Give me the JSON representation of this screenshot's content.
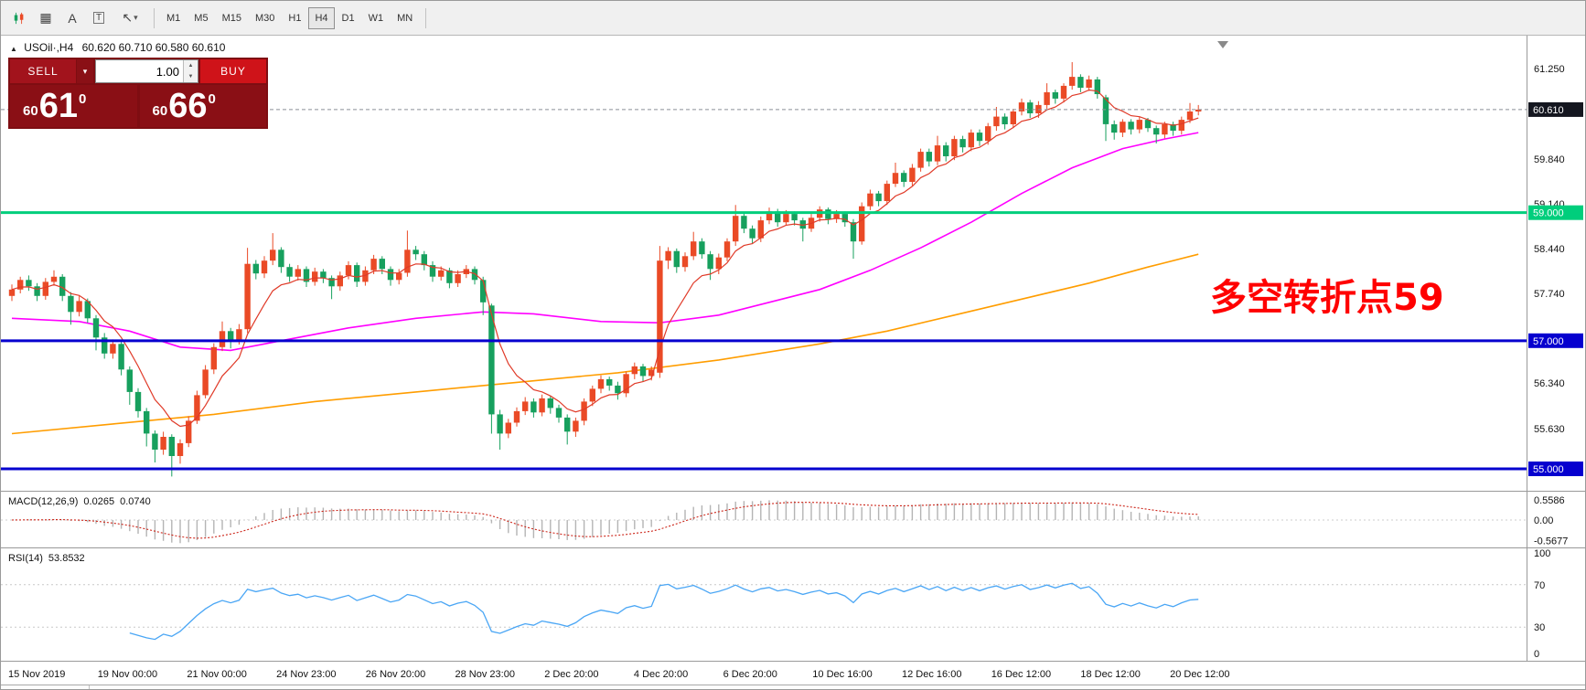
{
  "toolbar": {
    "icons": [
      {
        "name": "candlestick-chart-icon"
      },
      {
        "name": "indicator-window-icon",
        "glyph": "▦"
      },
      {
        "name": "text-label-icon",
        "glyph": "A"
      },
      {
        "name": "text-box-icon",
        "glyph": "T"
      },
      {
        "name": "drawing-tools-icon",
        "glyph": "↖"
      },
      {
        "name": "drawing-tools-caret-icon",
        "glyph": "▾"
      }
    ],
    "timeframes": [
      "M1",
      "M5",
      "M15",
      "M30",
      "H1",
      "H4",
      "D1",
      "W1",
      "MN"
    ],
    "active": "H4"
  },
  "title_bar": {
    "collapse_glyph": "▲",
    "symbol": "USOil·,H4",
    "ohlc": "60.620 60.710 60.580 60.610"
  },
  "trade_panel": {
    "sell_label": "SELL",
    "buy_label": "BUY",
    "volume": "1.00",
    "dropdown_glyph": "▾",
    "spin_up_glyph": "▲",
    "spin_down_glyph": "▼",
    "sell_price": {
      "prefix": "60",
      "big": "61",
      "sup": "0"
    },
    "buy_price": {
      "prefix": "60",
      "big": "66",
      "sup": "0"
    }
  },
  "annotation": {
    "text": "多空转折点59",
    "color": "#ff0000"
  },
  "price_axis": {
    "ticks": [
      {
        "label": "61.250",
        "price": 61.25
      },
      {
        "label": "59.840",
        "price": 59.84
      },
      {
        "label": "59.140",
        "price": 59.14
      },
      {
        "label": "58.440",
        "price": 58.44
      },
      {
        "label": "57.740",
        "price": 57.74
      },
      {
        "label": "56.340",
        "price": 56.34
      },
      {
        "label": "55.630",
        "price": 55.63
      }
    ]
  },
  "time_axis": {
    "labels": [
      "15 Nov 2019",
      "19 Nov 00:00",
      "21 Nov 00:00",
      "24 Nov 23:00",
      "26 Nov 20:00",
      "28 Nov 23:00",
      "2 Dec 20:00",
      "4 Dec 20:00",
      "6 Dec 20:00",
      "10 Dec 16:00",
      "12 Dec 16:00",
      "16 Dec 12:00",
      "18 Dec 12:00",
      "20 Dec 12:00"
    ]
  },
  "indicators": {
    "macd": {
      "label": "MACD(12,26,9)",
      "value_main": "0.0265",
      "value_signal": "0.0740",
      "axis": [
        {
          "label": "0.5586",
          "value": 0.5586
        },
        {
          "label": "0.00",
          "value": 0
        },
        {
          "label": "-0.5677",
          "value": -0.5677
        }
      ]
    },
    "rsi": {
      "label": "RSI(14)",
      "value": "53.8532",
      "levels": [
        70,
        30
      ],
      "axis": [
        {
          "label": "100",
          "value": 100
        },
        {
          "label": "70",
          "value": 70
        },
        {
          "label": "30",
          "value": 30
        },
        {
          "label": "0",
          "value": 0
        }
      ]
    }
  },
  "chart_data": {
    "type": "candlestick",
    "symbol": "USOil",
    "timeframe": "H4",
    "last_ohlc": {
      "open": 60.62,
      "high": 60.71,
      "low": 60.58,
      "close": 60.61
    },
    "price_range": [
      54.7,
      61.76
    ],
    "up_color": "#ea4a26",
    "down_color": "#17a05e",
    "ohlc": [
      [
        57.7,
        57.88,
        57.62,
        57.8
      ],
      [
        57.8,
        58.0,
        57.74,
        57.95
      ],
      [
        57.95,
        58.02,
        57.78,
        57.85
      ],
      [
        57.85,
        57.9,
        57.62,
        57.7
      ],
      [
        57.7,
        57.98,
        57.64,
        57.92
      ],
      [
        57.92,
        58.1,
        57.86,
        58.0
      ],
      [
        58.0,
        58.04,
        57.62,
        57.7
      ],
      [
        57.7,
        57.76,
        57.25,
        57.45
      ],
      [
        57.45,
        57.7,
        57.38,
        57.62
      ],
      [
        57.62,
        57.66,
        57.28,
        57.35
      ],
      [
        57.35,
        57.4,
        56.85,
        57.05
      ],
      [
        57.05,
        57.12,
        56.72,
        56.8
      ],
      [
        56.8,
        57.02,
        56.72,
        56.95
      ],
      [
        56.95,
        56.98,
        56.46,
        56.55
      ],
      [
        56.55,
        56.6,
        56.0,
        56.2
      ],
      [
        56.2,
        56.26,
        55.8,
        55.9
      ],
      [
        55.9,
        55.95,
        55.35,
        55.55
      ],
      [
        55.55,
        55.6,
        55.1,
        55.3
      ],
      [
        55.3,
        55.58,
        55.22,
        55.5
      ],
      [
        55.5,
        55.54,
        54.88,
        55.2
      ],
      [
        55.2,
        55.46,
        55.08,
        55.4
      ],
      [
        55.4,
        55.82,
        55.34,
        55.75
      ],
      [
        55.75,
        56.22,
        55.7,
        56.15
      ],
      [
        56.15,
        56.62,
        56.1,
        56.55
      ],
      [
        56.55,
        56.96,
        56.48,
        56.9
      ],
      [
        56.9,
        57.3,
        56.84,
        57.15
      ],
      [
        57.15,
        57.2,
        56.88,
        57.0
      ],
      [
        57.0,
        57.26,
        56.94,
        57.18
      ],
      [
        57.18,
        58.45,
        57.12,
        58.2
      ],
      [
        58.2,
        58.26,
        57.96,
        58.05
      ],
      [
        58.05,
        58.32,
        57.98,
        58.25
      ],
      [
        58.25,
        58.68,
        58.18,
        58.42
      ],
      [
        58.42,
        58.46,
        58.06,
        58.15
      ],
      [
        58.15,
        58.2,
        57.92,
        58.0
      ],
      [
        58.0,
        58.18,
        57.94,
        58.12
      ],
      [
        58.12,
        58.16,
        57.84,
        57.92
      ],
      [
        57.92,
        58.14,
        57.86,
        58.08
      ],
      [
        58.08,
        58.12,
        57.9,
        57.98
      ],
      [
        57.98,
        58.02,
        57.65,
        57.85
      ],
      [
        57.85,
        58.08,
        57.78,
        58.02
      ],
      [
        58.02,
        58.24,
        57.96,
        58.18
      ],
      [
        58.18,
        58.22,
        57.84,
        57.92
      ],
      [
        57.92,
        58.16,
        57.86,
        58.1
      ],
      [
        58.1,
        58.34,
        58.04,
        58.28
      ],
      [
        58.28,
        58.32,
        58.04,
        58.12
      ],
      [
        58.12,
        58.16,
        57.86,
        57.95
      ],
      [
        57.95,
        58.12,
        57.88,
        58.06
      ],
      [
        58.06,
        58.72,
        58.0,
        58.42
      ],
      [
        58.42,
        58.48,
        58.26,
        58.35
      ],
      [
        58.35,
        58.4,
        58.1,
        58.18
      ],
      [
        58.18,
        58.24,
        57.92,
        58.0
      ],
      [
        58.0,
        58.16,
        57.94,
        58.1
      ],
      [
        58.1,
        58.14,
        57.82,
        57.9
      ],
      [
        57.9,
        58.1,
        57.84,
        58.04
      ],
      [
        58.04,
        58.18,
        57.98,
        58.12
      ],
      [
        58.12,
        58.16,
        57.88,
        57.95
      ],
      [
        57.95,
        58.0,
        57.4,
        57.6
      ],
      [
        57.55,
        57.58,
        55.55,
        55.85
      ],
      [
        55.85,
        55.92,
        55.3,
        55.55
      ],
      [
        55.55,
        55.78,
        55.48,
        55.72
      ],
      [
        55.72,
        55.96,
        55.66,
        55.9
      ],
      [
        55.9,
        56.12,
        55.84,
        56.05
      ],
      [
        56.05,
        56.1,
        55.8,
        55.88
      ],
      [
        55.88,
        56.16,
        55.82,
        56.1
      ],
      [
        56.1,
        56.14,
        55.86,
        55.95
      ],
      [
        55.95,
        56.0,
        55.72,
        55.8
      ],
      [
        55.8,
        55.85,
        55.38,
        55.58
      ],
      [
        55.58,
        55.8,
        55.5,
        55.75
      ],
      [
        55.75,
        56.1,
        55.68,
        56.05
      ],
      [
        56.05,
        56.3,
        55.98,
        56.25
      ],
      [
        56.25,
        56.46,
        56.18,
        56.4
      ],
      [
        56.4,
        56.44,
        56.22,
        56.3
      ],
      [
        56.3,
        56.36,
        56.08,
        56.18
      ],
      [
        56.18,
        56.52,
        56.12,
        56.48
      ],
      [
        56.48,
        56.66,
        56.4,
        56.6
      ],
      [
        56.6,
        56.64,
        56.36,
        56.45
      ],
      [
        56.45,
        56.6,
        56.38,
        56.55
      ],
      [
        56.5,
        58.48,
        56.42,
        58.25
      ],
      [
        58.25,
        58.46,
        58.12,
        58.4
      ],
      [
        58.4,
        58.44,
        58.06,
        58.15
      ],
      [
        58.15,
        58.38,
        58.08,
        58.32
      ],
      [
        58.32,
        58.7,
        58.26,
        58.55
      ],
      [
        58.55,
        58.6,
        58.28,
        58.35
      ],
      [
        58.35,
        58.4,
        57.95,
        58.12
      ],
      [
        58.12,
        58.36,
        58.04,
        58.3
      ],
      [
        58.3,
        58.6,
        58.24,
        58.55
      ],
      [
        58.55,
        59.12,
        58.48,
        58.95
      ],
      [
        58.95,
        59.0,
        58.68,
        58.75
      ],
      [
        58.75,
        58.8,
        58.52,
        58.6
      ],
      [
        58.6,
        58.94,
        58.54,
        58.88
      ],
      [
        58.88,
        59.08,
        58.82,
        59.02
      ],
      [
        59.02,
        59.06,
        58.78,
        58.85
      ],
      [
        58.85,
        59.04,
        58.8,
        58.98
      ],
      [
        58.98,
        59.02,
        58.8,
        58.88
      ],
      [
        58.88,
        58.92,
        58.55,
        58.75
      ],
      [
        58.75,
        58.98,
        58.7,
        58.92
      ],
      [
        58.92,
        59.1,
        58.86,
        59.05
      ],
      [
        59.05,
        59.08,
        58.82,
        58.9
      ],
      [
        58.9,
        59.04,
        58.84,
        58.98
      ],
      [
        58.98,
        59.02,
        58.78,
        58.85
      ],
      [
        58.85,
        58.9,
        58.28,
        58.55
      ],
      [
        58.55,
        59.16,
        58.5,
        59.1
      ],
      [
        59.1,
        59.36,
        59.04,
        59.3
      ],
      [
        59.3,
        59.34,
        59.1,
        59.18
      ],
      [
        59.18,
        59.5,
        59.12,
        59.45
      ],
      [
        59.45,
        59.78,
        59.4,
        59.62
      ],
      [
        59.62,
        59.66,
        59.4,
        59.48
      ],
      [
        59.48,
        59.76,
        59.42,
        59.7
      ],
      [
        59.7,
        60.0,
        59.64,
        59.95
      ],
      [
        59.95,
        60.0,
        59.72,
        59.8
      ],
      [
        59.8,
        60.2,
        59.74,
        60.05
      ],
      [
        60.05,
        60.1,
        59.8,
        59.88
      ],
      [
        59.88,
        60.2,
        59.82,
        60.15
      ],
      [
        60.15,
        60.2,
        59.94,
        60.02
      ],
      [
        60.02,
        60.3,
        59.96,
        60.25
      ],
      [
        60.25,
        60.3,
        60.04,
        60.12
      ],
      [
        60.12,
        60.4,
        60.06,
        60.35
      ],
      [
        60.35,
        60.65,
        60.28,
        60.5
      ],
      [
        60.5,
        60.55,
        60.3,
        60.38
      ],
      [
        60.38,
        60.62,
        60.32,
        60.58
      ],
      [
        60.58,
        60.78,
        60.52,
        60.72
      ],
      [
        60.72,
        60.76,
        60.48,
        60.55
      ],
      [
        60.55,
        60.74,
        60.48,
        60.68
      ],
      [
        60.68,
        61.02,
        60.62,
        60.88
      ],
      [
        60.88,
        60.92,
        60.7,
        60.78
      ],
      [
        60.78,
        61.02,
        60.72,
        60.98
      ],
      [
        60.98,
        61.35,
        60.92,
        61.12
      ],
      [
        61.12,
        61.16,
        60.88,
        60.95
      ],
      [
        60.95,
        61.14,
        60.9,
        61.08
      ],
      [
        61.08,
        61.12,
        60.78,
        60.85
      ],
      [
        60.8,
        60.84,
        60.12,
        60.38
      ],
      [
        60.38,
        60.44,
        60.14,
        60.25
      ],
      [
        60.25,
        60.46,
        60.18,
        60.42
      ],
      [
        60.42,
        60.46,
        60.22,
        60.3
      ],
      [
        60.3,
        60.5,
        60.24,
        60.45
      ],
      [
        60.45,
        60.48,
        60.26,
        60.32
      ],
      [
        60.32,
        60.36,
        60.08,
        60.22
      ],
      [
        60.22,
        60.42,
        60.16,
        60.38
      ],
      [
        60.38,
        60.42,
        60.2,
        60.28
      ],
      [
        60.28,
        60.5,
        60.22,
        60.45
      ],
      [
        60.45,
        60.71,
        60.4,
        60.58
      ],
      [
        60.58,
        60.68,
        60.52,
        60.61
      ]
    ],
    "ma_fast": {
      "period": 7,
      "color": "#e03a28"
    },
    "ma_mid_color": "#ff00ff",
    "ma_mid_points": [
      [
        0,
        57.35
      ],
      [
        8,
        57.3
      ],
      [
        14,
        57.15
      ],
      [
        20,
        56.9
      ],
      [
        26,
        56.85
      ],
      [
        32,
        57.0
      ],
      [
        40,
        57.2
      ],
      [
        48,
        57.35
      ],
      [
        56,
        57.45
      ],
      [
        62,
        57.42
      ],
      [
        70,
        57.3
      ],
      [
        77,
        57.28
      ],
      [
        84,
        57.4
      ],
      [
        90,
        57.6
      ],
      [
        96,
        57.8
      ],
      [
        102,
        58.1
      ],
      [
        108,
        58.45
      ],
      [
        114,
        58.85
      ],
      [
        120,
        59.3
      ],
      [
        126,
        59.7
      ],
      [
        132,
        60.0
      ],
      [
        137,
        60.15
      ],
      [
        141,
        60.25
      ]
    ],
    "ma_slow_color": "#ff9d00",
    "ma_slow_points": [
      [
        0,
        55.55
      ],
      [
        12,
        55.7
      ],
      [
        24,
        55.85
      ],
      [
        36,
        56.05
      ],
      [
        48,
        56.2
      ],
      [
        60,
        56.35
      ],
      [
        72,
        56.5
      ],
      [
        84,
        56.7
      ],
      [
        96,
        56.95
      ],
      [
        104,
        57.15
      ],
      [
        112,
        57.4
      ],
      [
        120,
        57.65
      ],
      [
        128,
        57.9
      ],
      [
        135,
        58.15
      ],
      [
        141,
        58.35
      ]
    ],
    "hlines": [
      {
        "price": 59.0,
        "color": "#00ce7c",
        "label": "59.000"
      },
      {
        "price": 57.0,
        "color": "#0600cf",
        "label": "57.000"
      },
      {
        "price": 55.0,
        "color": "#0600cf",
        "label": "55.000"
      }
    ],
    "current_price": {
      "value": 60.61,
      "label": "60.610",
      "badge_bg": "#14161f"
    },
    "macd": {
      "fast": 12,
      "slow": 26,
      "signal": 9,
      "hist_color": "#b4b4b4",
      "signal_color": "#cc2418"
    },
    "rsi": {
      "period": 14,
      "color": "#4aa6f5"
    }
  }
}
